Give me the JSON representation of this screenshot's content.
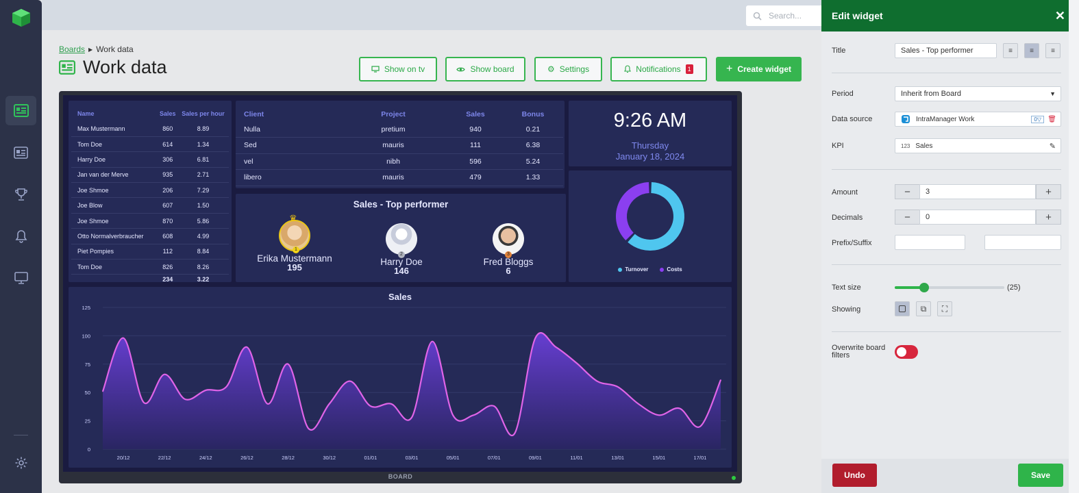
{
  "search": {
    "placeholder": "Search..."
  },
  "breadcrumb": {
    "root": "Boards",
    "current": "Work data"
  },
  "page": {
    "title": "Work data"
  },
  "toolbar": {
    "show_on_tv": "Show on tv",
    "show_board": "Show board",
    "settings": "Settings",
    "notifications": "Notifications",
    "notification_count": "1",
    "create_widget": "Create widget"
  },
  "sidebar": {
    "items": [
      "dashboard-icon",
      "boards-icon",
      "trophy-icon",
      "bell-icon",
      "monitor-icon",
      "gear-icon"
    ]
  },
  "board_label": "BOARD",
  "table1": {
    "headers": [
      "Name",
      "Sales",
      "Sales per hour"
    ],
    "rows": [
      [
        "Max Mustermann",
        "860",
        "8.89"
      ],
      [
        "Tom Doe",
        "614",
        "1.34"
      ],
      [
        "Harry Doe",
        "306",
        "6.81"
      ],
      [
        "Jan van der Merve",
        "935",
        "2.71"
      ],
      [
        "Joe Shmoe",
        "206",
        "7.29"
      ],
      [
        "Joe Blow",
        "607",
        "1.50"
      ],
      [
        "Joe Shmoe",
        "870",
        "5.86"
      ],
      [
        "Otto Normalverbraucher",
        "608",
        "4.99"
      ],
      [
        "Piet Pompies",
        "112",
        "8.84"
      ],
      [
        "Tom Doe",
        "826",
        "8.26"
      ]
    ],
    "totals": [
      "",
      "234",
      "3.22"
    ]
  },
  "table2": {
    "headers": [
      "Client",
      "Project",
      "Sales",
      "Bonus"
    ],
    "rows": [
      [
        "Nulla",
        "pretium",
        "940",
        "0.21"
      ],
      [
        "Sed",
        "mauris",
        "111",
        "6.38"
      ],
      [
        "vel",
        "nibh",
        "596",
        "5.24"
      ],
      [
        "libero",
        "mauris",
        "479",
        "1.33"
      ]
    ]
  },
  "clock": {
    "time": "9:26 AM",
    "weekday": "Thursday",
    "date": "January 18, 2024"
  },
  "top_performer": {
    "title": "Sales - Top performer",
    "people": [
      {
        "name": "Erika Mustermann",
        "score": "195",
        "rank": "1"
      },
      {
        "name": "Harry Doe",
        "score": "146",
        "rank": "2"
      },
      {
        "name": "Fred Bloggs",
        "score": "6",
        "rank": "3"
      }
    ]
  },
  "donut": {
    "legend": [
      "Turnover",
      "Costs"
    ],
    "values": [
      0.62,
      0.38
    ],
    "colors": [
      "#4fc6ef",
      "#8b3ff0"
    ]
  },
  "chart_data": {
    "type": "area",
    "title": "Sales",
    "xlabel": "",
    "ylabel": "",
    "ylim": [
      0,
      125
    ],
    "yticks": [
      "0",
      "25",
      "50",
      "75",
      "100",
      "125"
    ],
    "xticks": [
      "20/12",
      "22/12",
      "24/12",
      "26/12",
      "28/12",
      "30/12",
      "01/01",
      "03/01",
      "05/01",
      "07/01",
      "09/01",
      "11/01",
      "13/01",
      "15/01",
      "17/01"
    ],
    "x": [
      "19/12",
      "20/12",
      "21/12",
      "22/12",
      "23/12",
      "24/12",
      "25/12",
      "26/12",
      "27/12",
      "28/12",
      "29/12",
      "30/12",
      "31/12",
      "01/01",
      "02/01",
      "03/01",
      "04/01",
      "05/01",
      "06/01",
      "07/01",
      "08/01",
      "09/01",
      "10/01",
      "11/01",
      "12/01",
      "13/01",
      "14/01",
      "15/01",
      "16/01",
      "17/01",
      "18/01"
    ],
    "series": [
      {
        "values": [
          51,
          98,
          41,
          66,
          44,
          52,
          55,
          90,
          40,
          75,
          18,
          40,
          60,
          38,
          40,
          28,
          95,
          30,
          30,
          38,
          14,
          98,
          90,
          76,
          60,
          55,
          40,
          30,
          36,
          20,
          61
        ]
      }
    ],
    "grid": true,
    "colors": {
      "line": "#e064e8",
      "fill_top": "#6a3fd8",
      "fill_bottom": "#2a2563"
    }
  },
  "edit_widget": {
    "title": "Edit widget",
    "labels": {
      "title": "Title",
      "period": "Period",
      "data_source": "Data source",
      "kpi": "KPI",
      "amount": "Amount",
      "decimals": "Decimals",
      "prefix_suffix": "Prefix/Suffix",
      "text_size": "Text size",
      "showing": "Showing",
      "overwrite": "Overwrite board filters"
    },
    "values": {
      "title": "Sales - Top performer",
      "period": "Inherit from Board",
      "data_source": "IntraManager Work",
      "data_source_badge": "0▽",
      "kpi_prefix": "123",
      "kpi": "Sales",
      "amount": "3",
      "decimals": "0",
      "text_size": "(25)",
      "text_size_level": 0.27,
      "overwrite_board_filters": false
    },
    "undo": "Undo",
    "save": "Save"
  }
}
